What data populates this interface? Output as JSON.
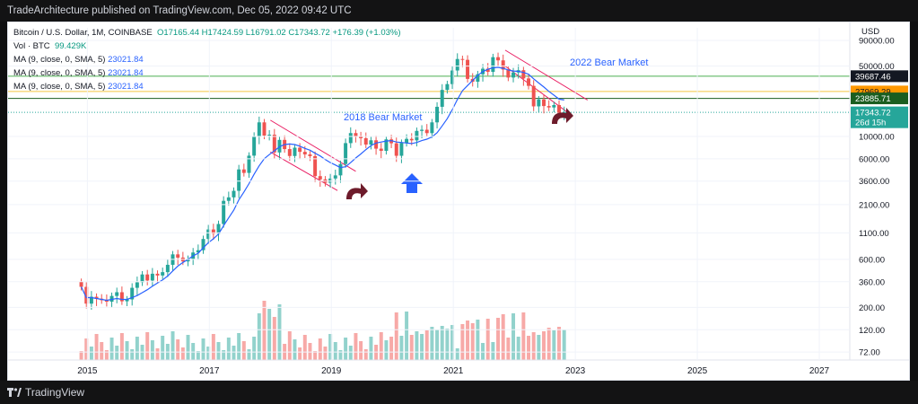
{
  "header": {
    "title": "TradeArchitecture published on TradingView.com, Dec 05, 2022 09:42 UTC"
  },
  "footer": {
    "brand": "TradingView"
  },
  "legend": {
    "symbol": "Bitcoin / U.S. Dollar, 1M, COINBASE",
    "open": "O17165.44",
    "high": "H17424.59",
    "low": "L16791.02",
    "close": "C17343.72",
    "change": "+176.39 (+1.03%)",
    "vol_label": "Vol · BTC",
    "vol_value": "99.429K",
    "ma_lines": [
      {
        "label": "MA (9, close, 0, SMA, 5)",
        "value": "23021.84"
      },
      {
        "label": "MA (9, close, 0, SMA, 5)",
        "value": "23021.84"
      },
      {
        "label": "MA (9, close, 0, SMA, 5)",
        "value": "23021.84"
      }
    ]
  },
  "annotations": {
    "bear_2018": "2018 Bear Market",
    "bear_2022": "2022 Bear Market"
  },
  "colors": {
    "up": "#26a69a",
    "down": "#ef5350",
    "ma": "#2962ff",
    "trend": "#e91e63",
    "arrow_dark": "#6d1b2b",
    "arrow_blue": "#2962ff"
  },
  "chart_data": {
    "type": "candlestick",
    "title": "",
    "scale": "log",
    "ylim": [
      60,
      120000
    ],
    "y_ticks": [
      90000,
      50000,
      10000,
      6000,
      3600,
      2100,
      1100,
      600,
      360,
      200,
      120,
      72
    ],
    "y_tick_labels": [
      "90000.00",
      "50000.00",
      "10000.00",
      "6000.00",
      "3600.00",
      "2100.00",
      "1100.00",
      "600.00",
      "360.00",
      "200.00",
      "120.00",
      "72.00"
    ],
    "x_ticks": [
      "2015",
      "2017",
      "2019",
      "2021",
      "2023",
      "2025",
      "2027"
    ],
    "x_tick_years": [
      2015,
      2017,
      2019,
      2021,
      2023,
      2025,
      2027
    ],
    "x_range": [
      2013.7,
      2027.5
    ],
    "start_year": 2014.9,
    "price_labels": [
      {
        "value": 39687.46,
        "text": "39687.46",
        "style": "dark"
      },
      {
        "value": 27969.29,
        "text": "27969.29",
        "style": "orange"
      },
      {
        "value": 23885.71,
        "text": "23885.71",
        "style": "darkgreen"
      },
      {
        "value": 17343.72,
        "text": "17343.72",
        "style": "green",
        "sub": "26d 15h"
      }
    ],
    "horizontal_lines": [
      {
        "value": 39687.46,
        "color": "#4caf50"
      },
      {
        "value": 27969.29,
        "color": "#f5c542"
      },
      {
        "value": 23885.71,
        "color": "#1b5e20"
      }
    ],
    "closes": [
      320,
      218,
      255,
      244,
      236,
      228,
      260,
      283,
      230,
      240,
      313,
      355,
      425,
      370,
      432,
      415,
      448,
      530,
      673,
      625,
      573,
      607,
      702,
      740,
      957,
      1190,
      1080,
      1348,
      2290,
      2480,
      2880,
      4700,
      4340,
      6440,
      9900,
      13800,
      10200,
      10400,
      6930,
      9240,
      7490,
      6390,
      7730,
      7030,
      6630,
      6370,
      4030,
      3740,
      3460,
      3820,
      4100,
      5320,
      8580,
      10800,
      10000,
      9600,
      8300,
      9150,
      7560,
      7190,
      9350,
      8550,
      6420,
      8630,
      9450,
      9140,
      11350,
      11650,
      10780,
      13800,
      19700,
      28990,
      33110,
      45200,
      58800,
      57700,
      37300,
      35000,
      41500,
      47100,
      43800,
      61300,
      57000,
      46200,
      38500,
      43200,
      45500,
      37700,
      31800,
      19900,
      23300,
      20050,
      19400,
      20500,
      17200,
      17343.72
    ],
    "ma9": [
      320,
      250,
      250,
      245,
      240,
      235,
      240,
      245,
      240,
      240,
      250,
      262,
      280,
      300,
      325,
      350,
      375,
      410,
      460,
      515,
      560,
      600,
      650,
      690,
      780,
      880,
      960,
      1070,
      1300,
      1550,
      1850,
      2350,
      2800,
      3400,
      4200,
      5100,
      6000,
      6600,
      7200,
      7900,
      8300,
      8400,
      8300,
      8000,
      7600,
      7300,
      6800,
      6400,
      5900,
      5500,
      5200,
      4900,
      5000,
      5500,
      6100,
      6700,
      7400,
      8100,
      8600,
      8800,
      9000,
      9100,
      8800,
      8700,
      8600,
      8500,
      8700,
      9100,
      9400,
      9900,
      10900,
      12700,
      15000,
      18500,
      23300,
      28500,
      32000,
      36000,
      40500,
      44000,
      46500,
      48000,
      48600,
      47500,
      45800,
      44700,
      44300,
      43200,
      41500,
      37400,
      34000,
      31000,
      28000,
      25700,
      23500,
      23021.84
    ],
    "volume_axis_max": 800000
  }
}
